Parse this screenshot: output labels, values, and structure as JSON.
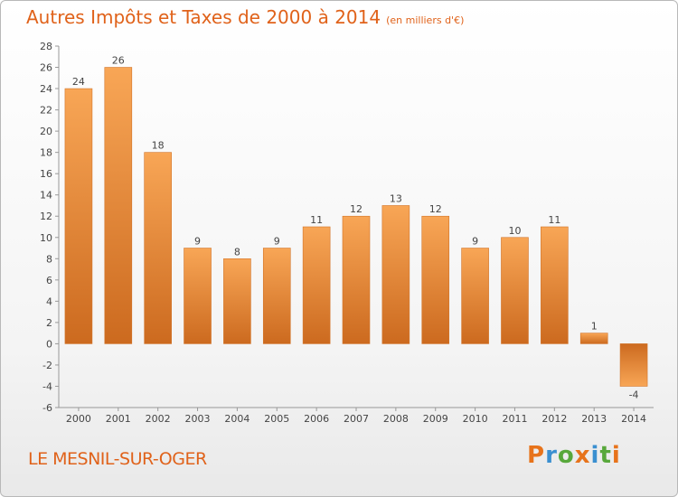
{
  "header": {
    "title": "Autres Impôts et Taxes de 2000 à 2014",
    "unit": "(en milliers d'€)"
  },
  "footer": {
    "commune": "LE MESNIL-SUR-OGER",
    "logo": "Proxiti",
    "logo_colors": [
      "#e7731b",
      "#3a8fd0",
      "#58a83b",
      "#e7731b",
      "#3a8fd0",
      "#58a83b",
      "#e7731b"
    ]
  },
  "colors": {
    "accent": "#e0621a",
    "bar_light": "#f7a45a",
    "bar_dark": "#c8661c"
  },
  "chart_data": {
    "type": "bar",
    "title": "Autres Impôts et Taxes de 2000 à 2014",
    "subtitle": "(en milliers d'€)",
    "xlabel": "",
    "ylabel": "",
    "categories": [
      "2000",
      "2001",
      "2002",
      "2003",
      "2004",
      "2005",
      "2006",
      "2007",
      "2008",
      "2009",
      "2010",
      "2011",
      "2012",
      "2013",
      "2014"
    ],
    "values": [
      24,
      26,
      18,
      9,
      8,
      9,
      11,
      12,
      13,
      12,
      9,
      10,
      11,
      1,
      -4
    ],
    "ylim": [
      -6,
      28
    ],
    "yticks": [
      -6,
      -4,
      -2,
      0,
      2,
      4,
      6,
      8,
      10,
      12,
      14,
      16,
      18,
      20,
      22,
      24,
      26,
      28
    ],
    "grid": false,
    "legend": "none"
  }
}
